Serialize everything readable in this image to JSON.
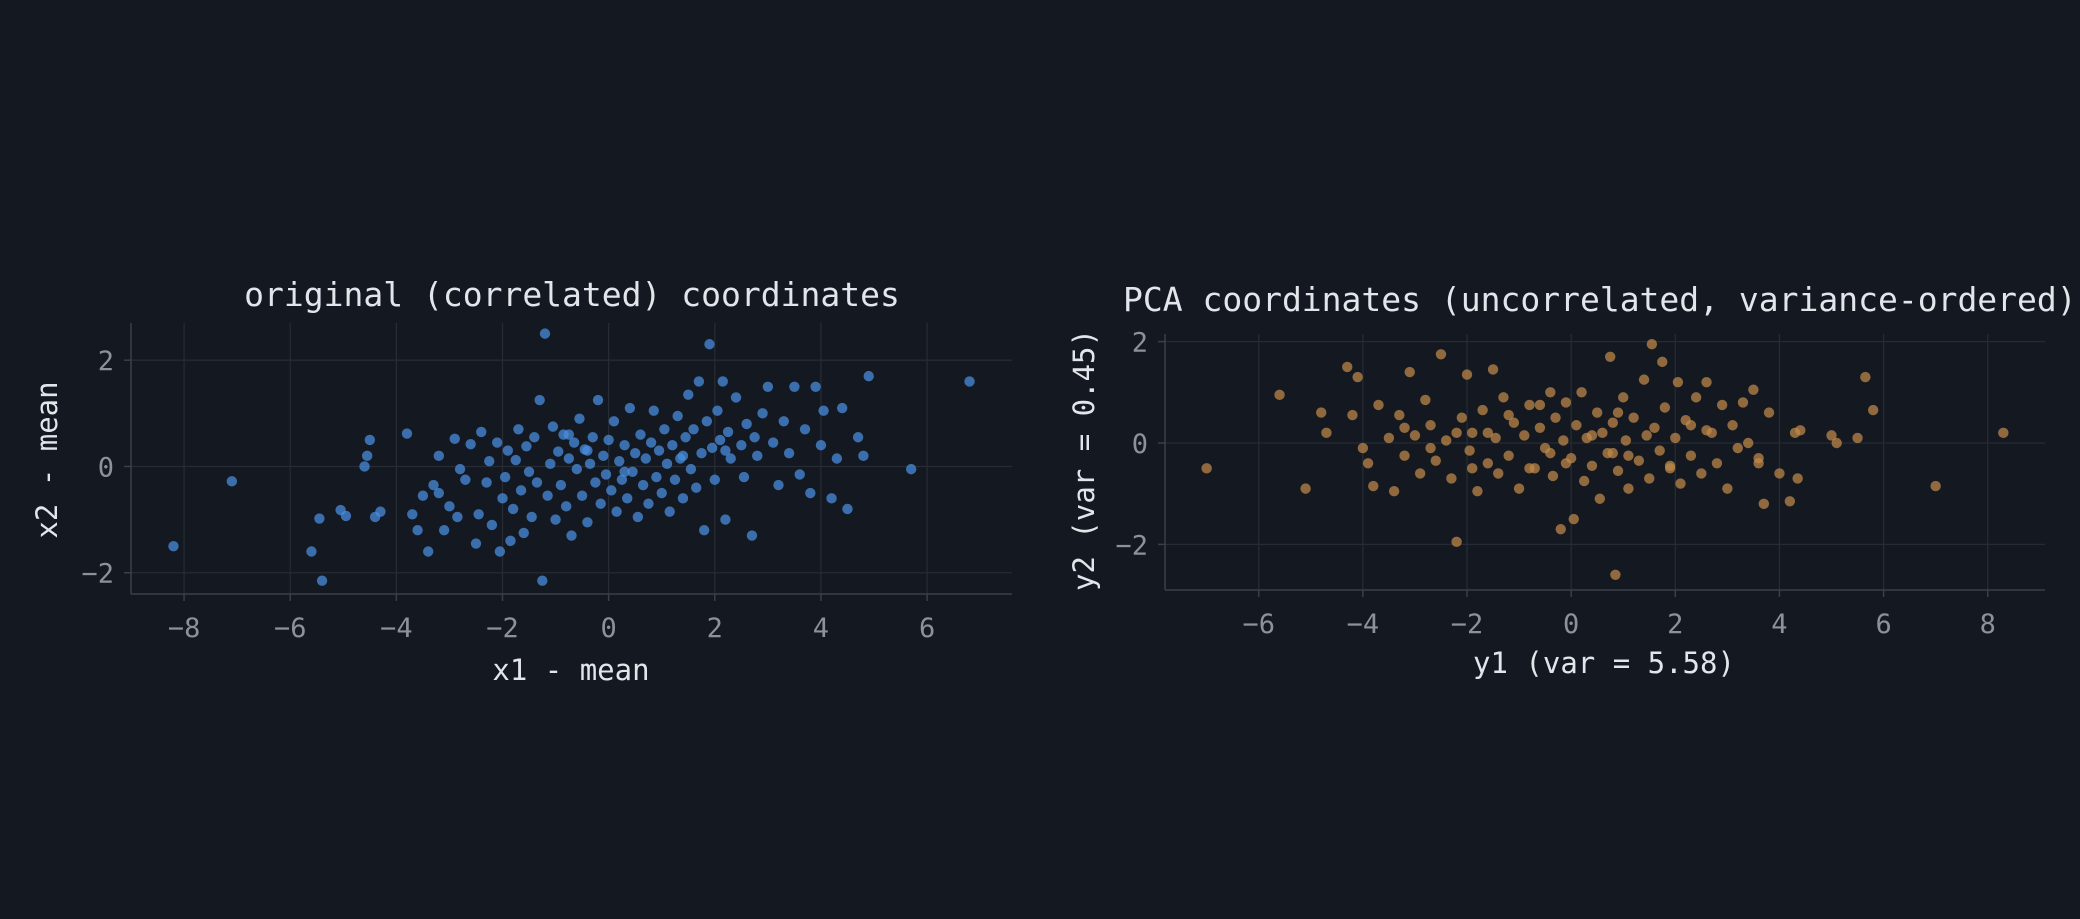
{
  "chart_data": [
    {
      "type": "scatter",
      "title": "original (correlated) coordinates",
      "xlabel": "x1 - mean",
      "ylabel": "x2 - mean",
      "xlim": [
        -9,
        7.6
      ],
      "ylim": [
        -2.4,
        2.7
      ],
      "xticks": [
        -8,
        -6,
        -4,
        -2,
        0,
        2,
        4,
        6
      ],
      "yticks": [
        -2,
        0,
        2
      ],
      "xtick_labels": [
        "−8",
        "−6",
        "−4",
        "−2",
        "0",
        "2",
        "4",
        "6"
      ],
      "ytick_labels": [
        "−2",
        "0",
        "2"
      ],
      "grid": true,
      "color": "#4a90e2",
      "points": [
        [
          -8.2,
          -1.5
        ],
        [
          -7.1,
          -0.28
        ],
        [
          -5.6,
          -1.6
        ],
        [
          -5.4,
          -2.15
        ],
        [
          -5.45,
          -0.98
        ],
        [
          -5.05,
          -0.82
        ],
        [
          -4.95,
          -0.93
        ],
        [
          -4.4,
          -0.95
        ],
        [
          -4.3,
          -0.85
        ],
        [
          -4.5,
          0.5
        ],
        [
          -4.55,
          0.2
        ],
        [
          -4.6,
          0.0
        ],
        [
          -3.8,
          0.62
        ],
        [
          -3.7,
          -0.9
        ],
        [
          -3.6,
          -1.2
        ],
        [
          -3.5,
          -0.55
        ],
        [
          -3.4,
          -1.6
        ],
        [
          -3.3,
          -0.35
        ],
        [
          -3.2,
          -0.5
        ],
        [
          -3.1,
          -1.2
        ],
        [
          -3.0,
          -0.75
        ],
        [
          -2.9,
          0.52
        ],
        [
          -2.85,
          -0.95
        ],
        [
          -2.7,
          -0.25
        ],
        [
          -2.6,
          0.42
        ],
        [
          -2.5,
          -1.45
        ],
        [
          -2.45,
          -0.9
        ],
        [
          -2.4,
          0.65
        ],
        [
          -2.3,
          -0.3
        ],
        [
          -2.25,
          0.1
        ],
        [
          -2.2,
          -1.1
        ],
        [
          -2.1,
          0.45
        ],
        [
          -2.05,
          -1.6
        ],
        [
          -2.0,
          -0.6
        ],
        [
          -1.95,
          -0.2
        ],
        [
          -1.9,
          0.3
        ],
        [
          -1.85,
          -1.4
        ],
        [
          -1.8,
          -0.8
        ],
        [
          -1.75,
          0.12
        ],
        [
          -1.7,
          0.7
        ],
        [
          -1.65,
          -0.45
        ],
        [
          -1.6,
          -1.25
        ],
        [
          -1.55,
          0.38
        ],
        [
          -1.5,
          -0.1
        ],
        [
          -1.45,
          -0.95
        ],
        [
          -1.4,
          0.55
        ],
        [
          -1.35,
          -0.3
        ],
        [
          -1.3,
          1.25
        ],
        [
          -1.25,
          -2.15
        ],
        [
          -1.2,
          2.5
        ],
        [
          -1.15,
          -0.55
        ],
        [
          -1.1,
          0.05
        ],
        [
          -1.05,
          0.75
        ],
        [
          -1.0,
          -1.0
        ],
        [
          -0.95,
          0.28
        ],
        [
          -0.9,
          -0.35
        ],
        [
          -0.85,
          0.6
        ],
        [
          -0.8,
          -0.75
        ],
        [
          -0.75,
          0.15
        ],
        [
          -0.7,
          -1.3
        ],
        [
          -0.65,
          0.45
        ],
        [
          -0.6,
          -0.05
        ],
        [
          -0.55,
          0.9
        ],
        [
          -0.5,
          -0.55
        ],
        [
          -0.45,
          0.32
        ],
        [
          -0.4,
          -1.05
        ],
        [
          -0.35,
          0.05
        ],
        [
          -0.3,
          0.55
        ],
        [
          -0.25,
          -0.3
        ],
        [
          -0.2,
          1.25
        ],
        [
          -0.15,
          -0.7
        ],
        [
          -0.1,
          0.2
        ],
        [
          -0.05,
          -0.15
        ],
        [
          0.0,
          0.5
        ],
        [
          0.05,
          -0.45
        ],
        [
          0.1,
          0.85
        ],
        [
          0.15,
          -0.85
        ],
        [
          0.2,
          0.1
        ],
        [
          0.25,
          -0.25
        ],
        [
          0.3,
          0.4
        ],
        [
          0.35,
          -0.6
        ],
        [
          0.4,
          1.1
        ],
        [
          0.45,
          -0.1
        ],
        [
          0.5,
          0.25
        ],
        [
          0.55,
          -0.95
        ],
        [
          0.6,
          0.6
        ],
        [
          0.65,
          -0.35
        ],
        [
          0.7,
          0.15
        ],
        [
          0.75,
          -0.7
        ],
        [
          0.8,
          0.45
        ],
        [
          0.85,
          1.05
        ],
        [
          0.9,
          -0.2
        ],
        [
          0.95,
          0.3
        ],
        [
          1.0,
          -0.5
        ],
        [
          1.05,
          0.7
        ],
        [
          1.1,
          0.05
        ],
        [
          1.15,
          -0.85
        ],
        [
          1.2,
          0.4
        ],
        [
          1.25,
          -0.25
        ],
        [
          1.3,
          0.95
        ],
        [
          1.35,
          0.15
        ],
        [
          1.4,
          -0.6
        ],
        [
          1.45,
          0.55
        ],
        [
          1.5,
          1.35
        ],
        [
          1.55,
          -0.05
        ],
        [
          1.6,
          0.7
        ],
        [
          1.65,
          -0.4
        ],
        [
          1.7,
          1.6
        ],
        [
          1.75,
          0.25
        ],
        [
          1.8,
          -1.2
        ],
        [
          1.85,
          0.85
        ],
        [
          1.9,
          2.3
        ],
        [
          1.95,
          0.35
        ],
        [
          2.0,
          -0.25
        ],
        [
          2.05,
          1.05
        ],
        [
          2.1,
          0.5
        ],
        [
          2.15,
          1.6
        ],
        [
          2.2,
          -1.0
        ],
        [
          2.25,
          0.65
        ],
        [
          2.3,
          0.15
        ],
        [
          2.4,
          1.3
        ],
        [
          2.5,
          0.4
        ],
        [
          2.55,
          -0.2
        ],
        [
          2.6,
          0.8
        ],
        [
          2.7,
          -1.3
        ],
        [
          2.75,
          0.55
        ],
        [
          2.8,
          0.2
        ],
        [
          2.9,
          1.0
        ],
        [
          3.0,
          1.5
        ],
        [
          3.1,
          0.45
        ],
        [
          3.2,
          -0.35
        ],
        [
          3.3,
          0.85
        ],
        [
          3.4,
          0.25
        ],
        [
          3.5,
          1.5
        ],
        [
          3.6,
          -0.15
        ],
        [
          3.7,
          0.7
        ],
        [
          3.8,
          -0.5
        ],
        [
          3.9,
          1.5
        ],
        [
          4.0,
          0.4
        ],
        [
          4.05,
          1.05
        ],
        [
          4.2,
          -0.6
        ],
        [
          4.3,
          0.15
        ],
        [
          4.4,
          1.1
        ],
        [
          4.5,
          -0.8
        ],
        [
          4.7,
          0.55
        ],
        [
          4.8,
          0.2
        ],
        [
          4.9,
          1.7
        ],
        [
          5.7,
          -0.05
        ],
        [
          6.8,
          1.6
        ],
        [
          -3.2,
          0.2
        ],
        [
          -2.8,
          -0.05
        ],
        [
          -0.75,
          0.6
        ],
        [
          -0.4,
          0.3
        ],
        [
          0.3,
          -0.1
        ],
        [
          1.4,
          0.2
        ],
        [
          2.2,
          0.3
        ]
      ]
    },
    {
      "type": "scatter",
      "title": "PCA coordinates (uncorrelated, variance-ordered)",
      "xlabel": "y1  (var = 5.58)",
      "ylabel": "y2  (var = 0.45)",
      "xlim": [
        -7.8,
        9.1
      ],
      "ylim": [
        -2.9,
        2.15
      ],
      "xticks": [
        -6,
        -4,
        -2,
        0,
        2,
        4,
        6,
        8
      ],
      "yticks": [
        -2,
        0,
        2
      ],
      "xtick_labels": [
        "−6",
        "−4",
        "−2",
        "0",
        "2",
        "4",
        "6",
        "8"
      ],
      "ytick_labels": [
        "−2",
        "0",
        "2"
      ],
      "grid": true,
      "color": "#c08a4a",
      "points": [
        [
          -7.0,
          -0.5
        ],
        [
          -5.6,
          0.95
        ],
        [
          -5.1,
          -0.9
        ],
        [
          -4.8,
          0.6
        ],
        [
          -4.7,
          0.2
        ],
        [
          -4.3,
          1.5
        ],
        [
          -4.2,
          0.55
        ],
        [
          -4.1,
          1.3
        ],
        [
          -4.0,
          -0.1
        ],
        [
          -3.9,
          -0.4
        ],
        [
          -3.8,
          -0.85
        ],
        [
          -3.7,
          0.75
        ],
        [
          -3.5,
          0.1
        ],
        [
          -3.4,
          -0.95
        ],
        [
          -3.3,
          0.55
        ],
        [
          -3.2,
          -0.25
        ],
        [
          -3.1,
          1.4
        ],
        [
          -3.0,
          0.15
        ],
        [
          -2.9,
          -0.6
        ],
        [
          -2.8,
          0.85
        ],
        [
          -2.7,
          0.35
        ],
        [
          -2.6,
          -0.35
        ],
        [
          -2.5,
          1.75
        ],
        [
          -2.4,
          0.05
        ],
        [
          -2.3,
          -0.7
        ],
        [
          -2.2,
          -1.95
        ],
        [
          -2.1,
          0.5
        ],
        [
          -2.0,
          1.35
        ],
        [
          -1.95,
          -0.15
        ],
        [
          -1.9,
          0.2
        ],
        [
          -1.8,
          -0.95
        ],
        [
          -1.7,
          0.65
        ],
        [
          -1.6,
          -0.4
        ],
        [
          -1.5,
          1.45
        ],
        [
          -1.45,
          0.1
        ],
        [
          -1.4,
          -0.6
        ],
        [
          -1.3,
          0.9
        ],
        [
          -1.2,
          -0.25
        ],
        [
          -1.1,
          0.4
        ],
        [
          -1.0,
          -0.9
        ],
        [
          -0.9,
          0.15
        ],
        [
          -0.8,
          0.75
        ],
        [
          -0.7,
          -0.5
        ],
        [
          -0.6,
          0.3
        ],
        [
          -0.5,
          -0.1
        ],
        [
          -0.4,
          1.0
        ],
        [
          -0.35,
          -0.65
        ],
        [
          -0.3,
          0.5
        ],
        [
          -0.2,
          -1.7
        ],
        [
          -0.15,
          0.05
        ],
        [
          -0.1,
          0.8
        ],
        [
          0.0,
          -0.3
        ],
        [
          0.05,
          -1.5
        ],
        [
          0.1,
          0.35
        ],
        [
          0.2,
          1.0
        ],
        [
          0.25,
          -0.75
        ],
        [
          0.3,
          0.1
        ],
        [
          0.4,
          -0.45
        ],
        [
          0.5,
          0.6
        ],
        [
          0.55,
          -1.1
        ],
        [
          0.6,
          0.2
        ],
        [
          0.7,
          -0.2
        ],
        [
          0.75,
          1.7
        ],
        [
          0.8,
          0.4
        ],
        [
          0.85,
          -2.6
        ],
        [
          0.9,
          -0.55
        ],
        [
          1.0,
          0.9
        ],
        [
          1.05,
          0.05
        ],
        [
          1.1,
          -0.9
        ],
        [
          1.2,
          0.5
        ],
        [
          1.3,
          -0.35
        ],
        [
          1.4,
          1.25
        ],
        [
          1.45,
          0.15
        ],
        [
          1.5,
          -0.7
        ],
        [
          1.55,
          1.95
        ],
        [
          1.6,
          0.3
        ],
        [
          1.7,
          -0.15
        ],
        [
          1.75,
          1.6
        ],
        [
          1.8,
          0.7
        ],
        [
          1.9,
          -0.45
        ],
        [
          2.0,
          0.1
        ],
        [
          2.05,
          1.2
        ],
        [
          2.1,
          -0.8
        ],
        [
          2.2,
          0.45
        ],
        [
          2.3,
          -0.25
        ],
        [
          2.4,
          0.9
        ],
        [
          2.5,
          -0.6
        ],
        [
          2.6,
          1.2
        ],
        [
          2.7,
          0.2
        ],
        [
          2.8,
          -0.4
        ],
        [
          2.9,
          0.75
        ],
        [
          3.0,
          -0.9
        ],
        [
          3.1,
          0.35
        ],
        [
          3.2,
          -0.1
        ],
        [
          3.3,
          0.8
        ],
        [
          3.4,
          0.0
        ],
        [
          3.5,
          1.05
        ],
        [
          3.6,
          -0.3
        ],
        [
          3.7,
          -1.2
        ],
        [
          3.8,
          0.6
        ],
        [
          4.0,
          -0.6
        ],
        [
          4.2,
          -1.15
        ],
        [
          4.3,
          0.2
        ],
        [
          4.35,
          -0.7
        ],
        [
          4.4,
          0.25
        ],
        [
          5.0,
          0.15
        ],
        [
          5.1,
          0.0
        ],
        [
          5.5,
          0.1
        ],
        [
          5.65,
          1.3
        ],
        [
          5.8,
          0.65
        ],
        [
          7.0,
          -0.85
        ],
        [
          8.3,
          0.2
        ],
        [
          -2.2,
          0.2
        ],
        [
          -1.6,
          0.2
        ],
        [
          -0.4,
          -0.2
        ],
        [
          0.4,
          0.15
        ],
        [
          1.1,
          -0.25
        ],
        [
          2.6,
          0.25
        ],
        [
          -3.2,
          0.3
        ],
        [
          -0.8,
          -0.5
        ],
        [
          -2.7,
          -0.1
        ],
        [
          -1.2,
          0.55
        ],
        [
          0.9,
          0.6
        ],
        [
          1.9,
          -0.5
        ],
        [
          3.6,
          -0.4
        ],
        [
          -0.1,
          -0.4
        ],
        [
          0.8,
          -0.2
        ],
        [
          -1.9,
          -0.5
        ],
        [
          2.3,
          0.35
        ],
        [
          -0.6,
          0.75
        ]
      ]
    }
  ]
}
